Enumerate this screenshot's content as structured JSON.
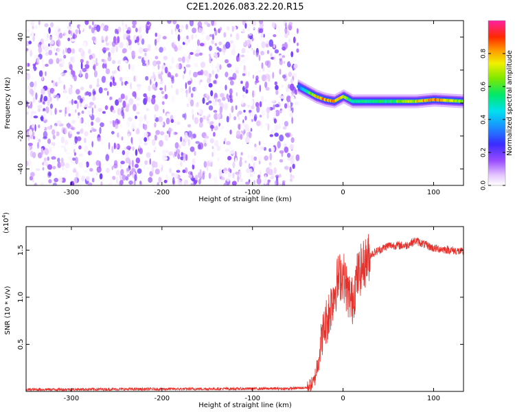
{
  "title": "C2E1.2026.083.22.20.R15",
  "colors": {
    "snr_line": "#e8312b",
    "frame": "#000000",
    "background": "#ffffff"
  },
  "chart_data": [
    {
      "type": "heatmap",
      "xlabel": "Height of straight line (km)",
      "ylabel": "Frequency (Hz)",
      "xlim": [
        -350,
        133
      ],
      "ylim": [
        -50,
        50
      ],
      "x_ticks": [
        -300,
        -200,
        -100,
        0,
        100
      ],
      "x_tick_labels": [
        "-300",
        "-200",
        "-100",
        "0",
        "100"
      ],
      "y_ticks": [
        -40,
        -20,
        0,
        20,
        40
      ],
      "y_tick_labels": [
        "-40",
        "-20",
        "0",
        "20",
        "40"
      ],
      "colorbar": {
        "label": "Normalized spectral amplitude",
        "range": [
          0,
          1
        ],
        "ticks": [
          0.0,
          0.2,
          0.4,
          0.6,
          0.8
        ],
        "tick_labels": [
          "0.0",
          "0.2",
          "0.4",
          "0.6",
          "0.8"
        ],
        "colormap": "white-purple-blue-cyan-green-yellow-red-magenta"
      },
      "noise_region": {
        "x_range": [
          -350,
          -50
        ],
        "freq_range": [
          -50,
          50
        ],
        "amplitude": [
          0.0,
          0.2
        ]
      },
      "signal_ridge": {
        "points": [
          {
            "x": -50,
            "freq": 10,
            "amplitude": 0.3
          },
          {
            "x": -40,
            "freq": 7,
            "amplitude": 0.5
          },
          {
            "x": -30,
            "freq": 4,
            "amplitude": 0.75
          },
          {
            "x": -20,
            "freq": 2,
            "amplitude": 0.85
          },
          {
            "x": -10,
            "freq": 1,
            "amplitude": 0.8
          },
          {
            "x": 0,
            "freq": 4,
            "amplitude": 0.7
          },
          {
            "x": 10,
            "freq": 1,
            "amplitude": 0.5
          },
          {
            "x": 50,
            "freq": 1,
            "amplitude": 0.55
          },
          {
            "x": 80,
            "freq": 1,
            "amplitude": 0.7
          },
          {
            "x": 100,
            "freq": 2,
            "amplitude": 0.85
          },
          {
            "x": 133,
            "freq": 1,
            "amplitude": 0.6
          }
        ]
      }
    },
    {
      "type": "line",
      "xlabel": "Height of straight line (km)",
      "ylabel": "SNR (10 * v/v)",
      "y_multiplier": "(x10",
      "y_multiplier_exponent": "4",
      "y_multiplier_close": ")",
      "xlim": [
        -350,
        133
      ],
      "ylim": [
        0,
        1.75
      ],
      "x_ticks": [
        -300,
        -200,
        -100,
        0,
        100
      ],
      "x_tick_labels": [
        "-300",
        "-200",
        "-100",
        "0",
        "100"
      ],
      "y_ticks": [
        0.5,
        1.0,
        1.5
      ],
      "y_tick_labels": [
        "0.5",
        "1.0",
        "1.5"
      ],
      "series": [
        {
          "x": [
            -350,
            -60,
            -40,
            -32,
            -28,
            -24,
            -20,
            -15,
            -10,
            -5,
            0,
            5,
            10,
            15,
            20,
            30,
            40,
            50,
            70,
            80,
            100,
            120,
            133
          ],
          "y": [
            0.02,
            0.03,
            0.04,
            0.1,
            0.3,
            0.55,
            0.7,
            0.85,
            1.05,
            1.2,
            1.25,
            1.05,
            0.95,
            1.2,
            1.3,
            1.45,
            1.5,
            1.55,
            1.55,
            1.6,
            1.52,
            1.5,
            1.48
          ]
        }
      ]
    }
  ]
}
